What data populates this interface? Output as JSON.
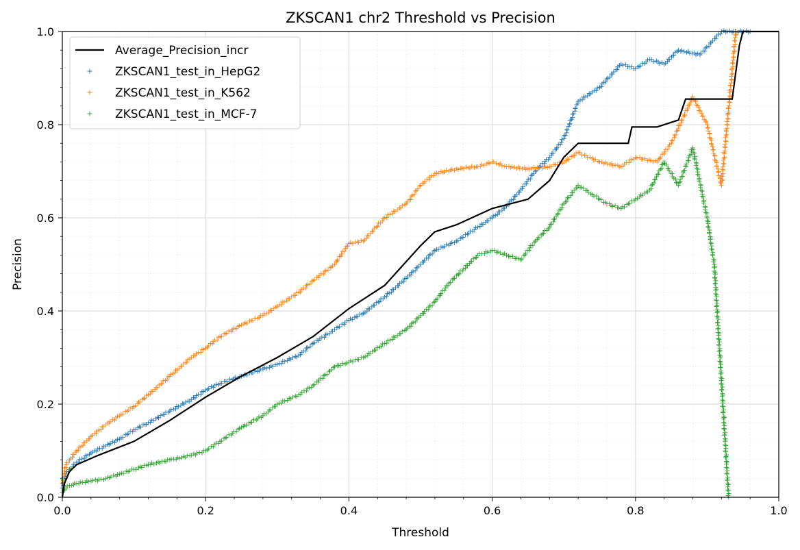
{
  "chart_data": {
    "type": "scatter",
    "title": "ZKSCAN1 chr2 Threshold vs Precision",
    "xlabel": "Threshold",
    "ylabel": "Precision",
    "xlim": [
      0.0,
      1.0
    ],
    "ylim": [
      0.0,
      1.0
    ],
    "xticks": [
      "0.0",
      "0.2",
      "0.4",
      "0.6",
      "0.8",
      "1.0"
    ],
    "yticks": [
      "0.0",
      "0.2",
      "0.4",
      "0.6",
      "0.8",
      "1.0"
    ],
    "grid": true,
    "minor_grid": true,
    "legend_position": "upper left",
    "line_series": {
      "name": "Average_Precision_incr",
      "color": "#000000",
      "style": "line",
      "points": [
        [
          0.0,
          0.0
        ],
        [
          0.003,
          0.03
        ],
        [
          0.01,
          0.055
        ],
        [
          0.02,
          0.07
        ],
        [
          0.05,
          0.09
        ],
        [
          0.1,
          0.12
        ],
        [
          0.15,
          0.165
        ],
        [
          0.2,
          0.215
        ],
        [
          0.25,
          0.26
        ],
        [
          0.3,
          0.3
        ],
        [
          0.35,
          0.345
        ],
        [
          0.4,
          0.405
        ],
        [
          0.45,
          0.455
        ],
        [
          0.5,
          0.54
        ],
        [
          0.52,
          0.57
        ],
        [
          0.55,
          0.585
        ],
        [
          0.6,
          0.62
        ],
        [
          0.65,
          0.64
        ],
        [
          0.68,
          0.68
        ],
        [
          0.7,
          0.73
        ],
        [
          0.72,
          0.76
        ],
        [
          0.79,
          0.76
        ],
        [
          0.795,
          0.795
        ],
        [
          0.83,
          0.795
        ],
        [
          0.86,
          0.81
        ],
        [
          0.87,
          0.855
        ],
        [
          0.935,
          0.855
        ],
        [
          0.945,
          0.97
        ],
        [
          0.95,
          1.0
        ],
        [
          1.0,
          1.0
        ]
      ]
    },
    "series": [
      {
        "name": "ZKSCAN1_test_in_HepG2",
        "color": "#1f77b4",
        "marker": "+",
        "points": [
          [
            0.0,
            0.02
          ],
          [
            0.005,
            0.05
          ],
          [
            0.01,
            0.06
          ],
          [
            0.02,
            0.075
          ],
          [
            0.04,
            0.095
          ],
          [
            0.06,
            0.11
          ],
          [
            0.08,
            0.125
          ],
          [
            0.1,
            0.145
          ],
          [
            0.12,
            0.16
          ],
          [
            0.15,
            0.185
          ],
          [
            0.18,
            0.21
          ],
          [
            0.2,
            0.23
          ],
          [
            0.22,
            0.245
          ],
          [
            0.25,
            0.26
          ],
          [
            0.28,
            0.275
          ],
          [
            0.3,
            0.285
          ],
          [
            0.33,
            0.305
          ],
          [
            0.35,
            0.33
          ],
          [
            0.38,
            0.36
          ],
          [
            0.4,
            0.38
          ],
          [
            0.42,
            0.395
          ],
          [
            0.45,
            0.43
          ],
          [
            0.48,
            0.47
          ],
          [
            0.5,
            0.5
          ],
          [
            0.52,
            0.53
          ],
          [
            0.55,
            0.55
          ],
          [
            0.58,
            0.58
          ],
          [
            0.6,
            0.6
          ],
          [
            0.62,
            0.625
          ],
          [
            0.64,
            0.66
          ],
          [
            0.66,
            0.7
          ],
          [
            0.68,
            0.73
          ],
          [
            0.7,
            0.77
          ],
          [
            0.72,
            0.85
          ],
          [
            0.75,
            0.88
          ],
          [
            0.78,
            0.93
          ],
          [
            0.8,
            0.92
          ],
          [
            0.82,
            0.94
          ],
          [
            0.84,
            0.93
          ],
          [
            0.86,
            0.96
          ],
          [
            0.89,
            0.95
          ],
          [
            0.92,
            1.0
          ],
          [
            0.96,
            1.0
          ]
        ]
      },
      {
        "name": "ZKSCAN1_test_in_K562",
        "color": "#ff7f0e",
        "marker": "+",
        "points": [
          [
            0.0,
            0.03
          ],
          [
            0.005,
            0.07
          ],
          [
            0.01,
            0.08
          ],
          [
            0.02,
            0.1
          ],
          [
            0.04,
            0.13
          ],
          [
            0.06,
            0.155
          ],
          [
            0.08,
            0.175
          ],
          [
            0.1,
            0.195
          ],
          [
            0.12,
            0.22
          ],
          [
            0.15,
            0.26
          ],
          [
            0.18,
            0.3
          ],
          [
            0.2,
            0.32
          ],
          [
            0.22,
            0.345
          ],
          [
            0.25,
            0.37
          ],
          [
            0.28,
            0.39
          ],
          [
            0.3,
            0.41
          ],
          [
            0.33,
            0.44
          ],
          [
            0.35,
            0.465
          ],
          [
            0.38,
            0.5
          ],
          [
            0.4,
            0.545
          ],
          [
            0.42,
            0.55
          ],
          [
            0.45,
            0.6
          ],
          [
            0.48,
            0.63
          ],
          [
            0.5,
            0.67
          ],
          [
            0.52,
            0.695
          ],
          [
            0.55,
            0.705
          ],
          [
            0.58,
            0.71
          ],
          [
            0.6,
            0.72
          ],
          [
            0.62,
            0.71
          ],
          [
            0.65,
            0.705
          ],
          [
            0.68,
            0.71
          ],
          [
            0.7,
            0.72
          ],
          [
            0.72,
            0.74
          ],
          [
            0.75,
            0.72
          ],
          [
            0.78,
            0.71
          ],
          [
            0.8,
            0.73
          ],
          [
            0.83,
            0.72
          ],
          [
            0.85,
            0.76
          ],
          [
            0.88,
            0.86
          ],
          [
            0.9,
            0.8
          ],
          [
            0.92,
            0.67
          ],
          [
            0.94,
            1.0
          ]
        ]
      },
      {
        "name": "ZKSCAN1_test_in_MCF-7",
        "color": "#2ca02c",
        "marker": "+",
        "points": [
          [
            0.0,
            0.01
          ],
          [
            0.005,
            0.02
          ],
          [
            0.01,
            0.025
          ],
          [
            0.02,
            0.03
          ],
          [
            0.04,
            0.035
          ],
          [
            0.06,
            0.04
          ],
          [
            0.08,
            0.05
          ],
          [
            0.1,
            0.06
          ],
          [
            0.12,
            0.07
          ],
          [
            0.15,
            0.08
          ],
          [
            0.18,
            0.09
          ],
          [
            0.2,
            0.1
          ],
          [
            0.22,
            0.12
          ],
          [
            0.25,
            0.15
          ],
          [
            0.28,
            0.175
          ],
          [
            0.3,
            0.2
          ],
          [
            0.33,
            0.22
          ],
          [
            0.35,
            0.24
          ],
          [
            0.38,
            0.28
          ],
          [
            0.4,
            0.29
          ],
          [
            0.42,
            0.3
          ],
          [
            0.45,
            0.33
          ],
          [
            0.48,
            0.36
          ],
          [
            0.5,
            0.39
          ],
          [
            0.52,
            0.42
          ],
          [
            0.54,
            0.46
          ],
          [
            0.56,
            0.49
          ],
          [
            0.58,
            0.52
          ],
          [
            0.6,
            0.53
          ],
          [
            0.62,
            0.52
          ],
          [
            0.64,
            0.51
          ],
          [
            0.66,
            0.55
          ],
          [
            0.68,
            0.58
          ],
          [
            0.7,
            0.63
          ],
          [
            0.72,
            0.67
          ],
          [
            0.74,
            0.65
          ],
          [
            0.76,
            0.63
          ],
          [
            0.78,
            0.62
          ],
          [
            0.8,
            0.64
          ],
          [
            0.82,
            0.66
          ],
          [
            0.84,
            0.72
          ],
          [
            0.86,
            0.67
          ],
          [
            0.88,
            0.75
          ],
          [
            0.9,
            0.6
          ],
          [
            0.91,
            0.5
          ],
          [
            0.93,
            0.0
          ]
        ]
      }
    ]
  }
}
